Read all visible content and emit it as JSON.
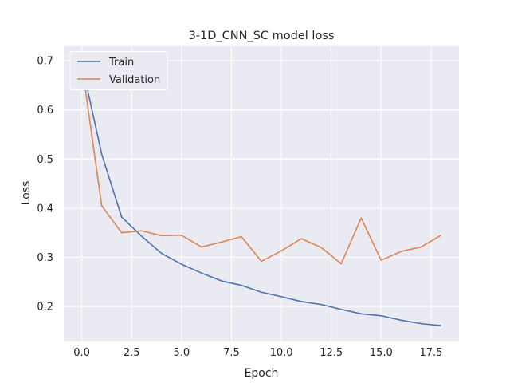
{
  "chart_data": {
    "type": "line",
    "title": "3-1D_CNN_SC model loss",
    "xlabel": "Epoch",
    "ylabel": "Loss",
    "xlim": [
      -0.9,
      18.9
    ],
    "ylim": [
      0.13,
      0.73
    ],
    "xticks": [
      0.0,
      2.5,
      5.0,
      7.5,
      10.0,
      12.5,
      15.0,
      17.5
    ],
    "xtick_labels": [
      "0.0",
      "2.5",
      "5.0",
      "7.5",
      "10.0",
      "12.5",
      "15.0",
      "17.5"
    ],
    "yticks": [
      0.2,
      0.3,
      0.4,
      0.5,
      0.6,
      0.7
    ],
    "ytick_labels": [
      "0.2",
      "0.3",
      "0.4",
      "0.5",
      "0.6",
      "0.7"
    ],
    "grid": true,
    "legend_position": "top-left",
    "x": [
      0,
      1,
      2,
      3,
      4,
      5,
      6,
      7,
      8,
      9,
      10,
      11,
      12,
      13,
      14,
      15,
      16,
      17,
      18
    ],
    "series": [
      {
        "name": "Train",
        "color": "#4c72b0",
        "values": [
          0.695,
          0.51,
          0.382,
          0.343,
          0.308,
          0.286,
          0.268,
          0.252,
          0.243,
          0.229,
          0.22,
          0.21,
          0.204,
          0.194,
          0.185,
          0.181,
          0.172,
          0.165,
          0.161
        ]
      },
      {
        "name": "Validation",
        "color": "#dd8452",
        "values": [
          0.695,
          0.405,
          0.35,
          0.354,
          0.344,
          0.345,
          0.321,
          0.331,
          0.342,
          0.292,
          0.313,
          0.338,
          0.32,
          0.287,
          0.38,
          0.294,
          0.312,
          0.321,
          0.345
        ]
      }
    ],
    "background_color": "#eaeaf2",
    "grid_color": "#ffffff"
  }
}
